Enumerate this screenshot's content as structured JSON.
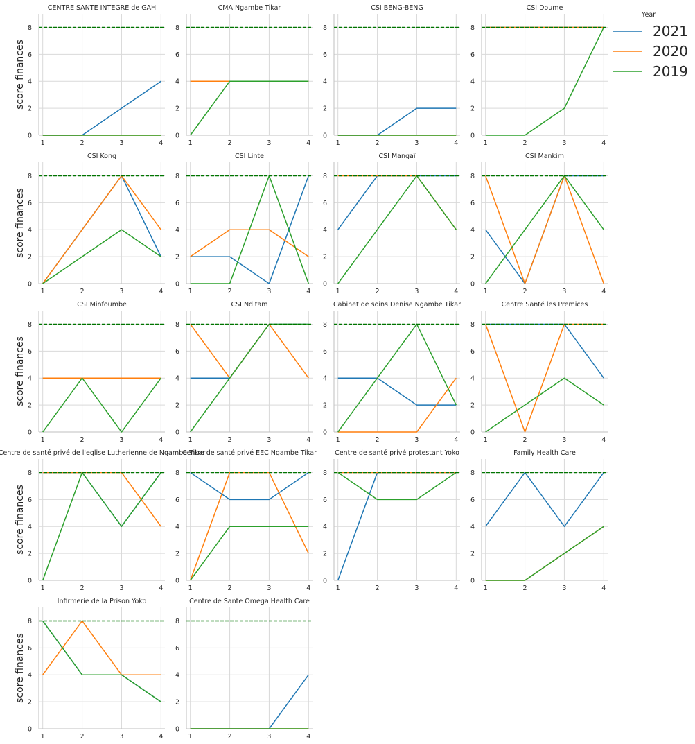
{
  "chart_data": {
    "type": "line",
    "layout": "facet-grid",
    "ylabel": "score finances",
    "x_ticks": [
      1,
      2,
      3,
      4
    ],
    "y_ticks": [
      0,
      2,
      4,
      6,
      8
    ],
    "xlim": [
      0.9,
      4.1
    ],
    "ylim": [
      0,
      9
    ],
    "grid": true,
    "reference_line": {
      "y": 8,
      "style": "dashed",
      "color": "#007500"
    },
    "legend": {
      "title": "Year",
      "placement": "right",
      "entries": [
        {
          "name": "2021",
          "color": "#1f77b4"
        },
        {
          "name": "2020",
          "color": "#ff7f0e"
        },
        {
          "name": "2019",
          "color": "#2ca02c"
        }
      ]
    },
    "panels": [
      {
        "title": "CENTRE SANTE INTEGRE  de GAH",
        "series": [
          {
            "name": "2021",
            "x": [
              1,
              2,
              3,
              4
            ],
            "y": [
              0,
              0,
              2,
              4
            ]
          },
          {
            "name": "2020",
            "x": [
              1,
              2,
              3,
              4
            ],
            "y": [
              0,
              0,
              0,
              0
            ]
          },
          {
            "name": "2019",
            "x": [
              1,
              2,
              3,
              4
            ],
            "y": [
              0,
              0,
              0,
              0
            ]
          }
        ]
      },
      {
        "title": "CMA Ngambe Tikar",
        "series": [
          {
            "name": "2021",
            "x": [
              1,
              2,
              3,
              4
            ],
            "y": [
              4,
              4,
              4,
              4
            ]
          },
          {
            "name": "2020",
            "x": [
              1,
              2,
              3,
              4
            ],
            "y": [
              4,
              4,
              4,
              4
            ]
          },
          {
            "name": "2019",
            "x": [
              1,
              2,
              3,
              4
            ],
            "y": [
              0,
              4,
              4,
              4
            ]
          }
        ]
      },
      {
        "title": "CSI BENG-BENG",
        "series": [
          {
            "name": "2021",
            "x": [
              1,
              2,
              3,
              4
            ],
            "y": [
              0,
              0,
              2,
              2
            ]
          },
          {
            "name": "2020",
            "x": [
              1,
              2,
              3,
              4
            ],
            "y": [
              0,
              0,
              0,
              0
            ]
          },
          {
            "name": "2019",
            "x": [
              1,
              2,
              3,
              4
            ],
            "y": [
              0,
              0,
              0,
              0
            ]
          }
        ]
      },
      {
        "title": "CSI Doume",
        "series": [
          {
            "name": "2021",
            "x": [
              1,
              2,
              3,
              4
            ],
            "y": [
              8,
              8,
              8,
              8
            ]
          },
          {
            "name": "2020",
            "x": [
              1,
              2,
              3,
              4
            ],
            "y": [
              8,
              8,
              8,
              8
            ]
          },
          {
            "name": "2019",
            "x": [
              1,
              2,
              3,
              4
            ],
            "y": [
              0,
              0,
              2,
              8
            ]
          }
        ]
      },
      {
        "title": "CSI Kong",
        "series": [
          {
            "name": "2021",
            "x": [
              1,
              2,
              3,
              4
            ],
            "y": [
              0,
              4,
              8,
              2
            ]
          },
          {
            "name": "2020",
            "x": [
              1,
              2,
              3,
              4
            ],
            "y": [
              0,
              4,
              8,
              4
            ]
          },
          {
            "name": "2019",
            "x": [
              1,
              2,
              3,
              4
            ],
            "y": [
              0,
              2,
              4,
              2
            ]
          }
        ]
      },
      {
        "title": "CSI Linte",
        "series": [
          {
            "name": "2021",
            "x": [
              1,
              2,
              3,
              4
            ],
            "y": [
              2,
              2,
              0,
              8
            ]
          },
          {
            "name": "2020",
            "x": [
              1,
              2,
              3,
              4
            ],
            "y": [
              2,
              4,
              4,
              2
            ]
          },
          {
            "name": "2019",
            "x": [
              1,
              2,
              3,
              4
            ],
            "y": [
              0,
              0,
              8,
              0
            ]
          }
        ]
      },
      {
        "title": "CSI Mangaï",
        "series": [
          {
            "name": "2021",
            "x": [
              1,
              2,
              3,
              4
            ],
            "y": [
              4,
              8,
              8,
              8
            ]
          },
          {
            "name": "2020",
            "x": [
              1,
              2,
              3,
              4
            ],
            "y": [
              8,
              8,
              8,
              4
            ]
          },
          {
            "name": "2019",
            "x": [
              1,
              2,
              3,
              4
            ],
            "y": [
              0,
              4,
              8,
              4
            ]
          }
        ]
      },
      {
        "title": "CSI Mankim",
        "series": [
          {
            "name": "2021",
            "x": [
              1,
              2,
              3,
              4
            ],
            "y": [
              4,
              0,
              8,
              8
            ]
          },
          {
            "name": "2020",
            "x": [
              1,
              2,
              3,
              4
            ],
            "y": [
              8,
              0,
              8,
              0
            ]
          },
          {
            "name": "2019",
            "x": [
              1,
              2,
              3,
              4
            ],
            "y": [
              0,
              4,
              8,
              4
            ]
          }
        ]
      },
      {
        "title": "CSI Minfoumbe",
        "series": [
          {
            "name": "2021",
            "x": [
              1,
              2,
              3,
              4
            ],
            "y": [
              4,
              4,
              4,
              4
            ]
          },
          {
            "name": "2020",
            "x": [
              1,
              2,
              3,
              4
            ],
            "y": [
              4,
              4,
              4,
              4
            ]
          },
          {
            "name": "2019",
            "x": [
              1,
              2,
              3,
              4
            ],
            "y": [
              0,
              4,
              0,
              4
            ]
          }
        ]
      },
      {
        "title": "CSI Nditam",
        "series": [
          {
            "name": "2021",
            "x": [
              1,
              2,
              3,
              4
            ],
            "y": [
              4,
              4,
              8,
              8
            ]
          },
          {
            "name": "2020",
            "x": [
              1,
              2,
              3,
              4
            ],
            "y": [
              8,
              4,
              8,
              4
            ]
          },
          {
            "name": "2019",
            "x": [
              1,
              2,
              3,
              4
            ],
            "y": [
              0,
              4,
              8,
              8
            ]
          }
        ]
      },
      {
        "title": "Cabinet de soins Denise Ngambe Tikar",
        "series": [
          {
            "name": "2021",
            "x": [
              1,
              2,
              3,
              4
            ],
            "y": [
              4,
              4,
              2,
              2
            ]
          },
          {
            "name": "2020",
            "x": [
              1,
              2,
              3,
              4
            ],
            "y": [
              0,
              0,
              0,
              4
            ]
          },
          {
            "name": "2019",
            "x": [
              1,
              2,
              3,
              4
            ],
            "y": [
              0,
              4,
              8,
              2
            ]
          }
        ]
      },
      {
        "title": "Centre Santé les Premices",
        "series": [
          {
            "name": "2021",
            "x": [
              1,
              2,
              3,
              4
            ],
            "y": [
              8,
              8,
              8,
              4
            ]
          },
          {
            "name": "2020",
            "x": [
              1,
              2,
              3,
              4
            ],
            "y": [
              8,
              0,
              8,
              8
            ]
          },
          {
            "name": "2019",
            "x": [
              1,
              2,
              3,
              4
            ],
            "y": [
              0,
              2,
              4,
              2
            ]
          }
        ]
      },
      {
        "title": "Centre de santé privé  de l'eglise Lutherienne de Ngambe Tikar",
        "series": [
          {
            "name": "2021",
            "x": [
              1,
              2,
              3,
              4
            ],
            "y": [
              8,
              8,
              4,
              8
            ]
          },
          {
            "name": "2020",
            "x": [
              1,
              2,
              3,
              4
            ],
            "y": [
              8,
              8,
              8,
              4
            ]
          },
          {
            "name": "2019",
            "x": [
              1,
              2,
              3,
              4
            ],
            "y": [
              0,
              8,
              4,
              8
            ]
          }
        ]
      },
      {
        "title": "Centre de santé privé EEC Ngambe Tikar",
        "series": [
          {
            "name": "2021",
            "x": [
              1,
              2,
              3,
              4
            ],
            "y": [
              8,
              6,
              6,
              8
            ]
          },
          {
            "name": "2020",
            "x": [
              1,
              2,
              3,
              4
            ],
            "y": [
              0,
              8,
              8,
              2
            ]
          },
          {
            "name": "2019",
            "x": [
              1,
              2,
              3,
              4
            ],
            "y": [
              0,
              4,
              4,
              4
            ]
          }
        ]
      },
      {
        "title": "Centre de santé privé protestant Yoko",
        "series": [
          {
            "name": "2021",
            "x": [
              1,
              2,
              3,
              4
            ],
            "y": [
              0,
              8,
              8,
              8
            ]
          },
          {
            "name": "2020",
            "x": [
              1,
              2,
              3,
              4
            ],
            "y": [
              8,
              8,
              8,
              8
            ]
          },
          {
            "name": "2019",
            "x": [
              1,
              2,
              3,
              4
            ],
            "y": [
              8,
              6,
              6,
              8
            ]
          }
        ]
      },
      {
        "title": "Family Health Care",
        "series": [
          {
            "name": "2021",
            "x": [
              1,
              2,
              3,
              4
            ],
            "y": [
              4,
              8,
              4,
              8
            ]
          },
          {
            "name": "2020",
            "x": [
              1,
              2,
              3,
              4
            ],
            "y": [
              0,
              0,
              2,
              4
            ]
          },
          {
            "name": "2019",
            "x": [
              1,
              2,
              3,
              4
            ],
            "y": [
              0,
              0,
              2,
              4
            ]
          }
        ]
      },
      {
        "title": "Infirmerie de la Prison Yoko",
        "series": [
          {
            "name": "2021",
            "x": [
              1,
              2,
              3,
              4
            ],
            "y": [
              8,
              4,
              4,
              2
            ]
          },
          {
            "name": "2020",
            "x": [
              1,
              2,
              3,
              4
            ],
            "y": [
              4,
              8,
              4,
              4
            ]
          },
          {
            "name": "2019",
            "x": [
              1,
              2,
              3,
              4
            ],
            "y": [
              8,
              4,
              4,
              2
            ]
          }
        ]
      },
      {
        "title": "Centre de Sante Omega Health  Care",
        "series": [
          {
            "name": "2021",
            "x": [
              1,
              2,
              3,
              4
            ],
            "y": [
              0,
              0,
              0,
              4
            ]
          },
          {
            "name": "2020",
            "x": [
              1,
              2,
              3,
              4
            ],
            "y": [
              0,
              0,
              0,
              0
            ]
          },
          {
            "name": "2019",
            "x": [
              1,
              2,
              3,
              4
            ],
            "y": [
              0,
              0,
              0,
              0
            ]
          }
        ]
      }
    ]
  }
}
